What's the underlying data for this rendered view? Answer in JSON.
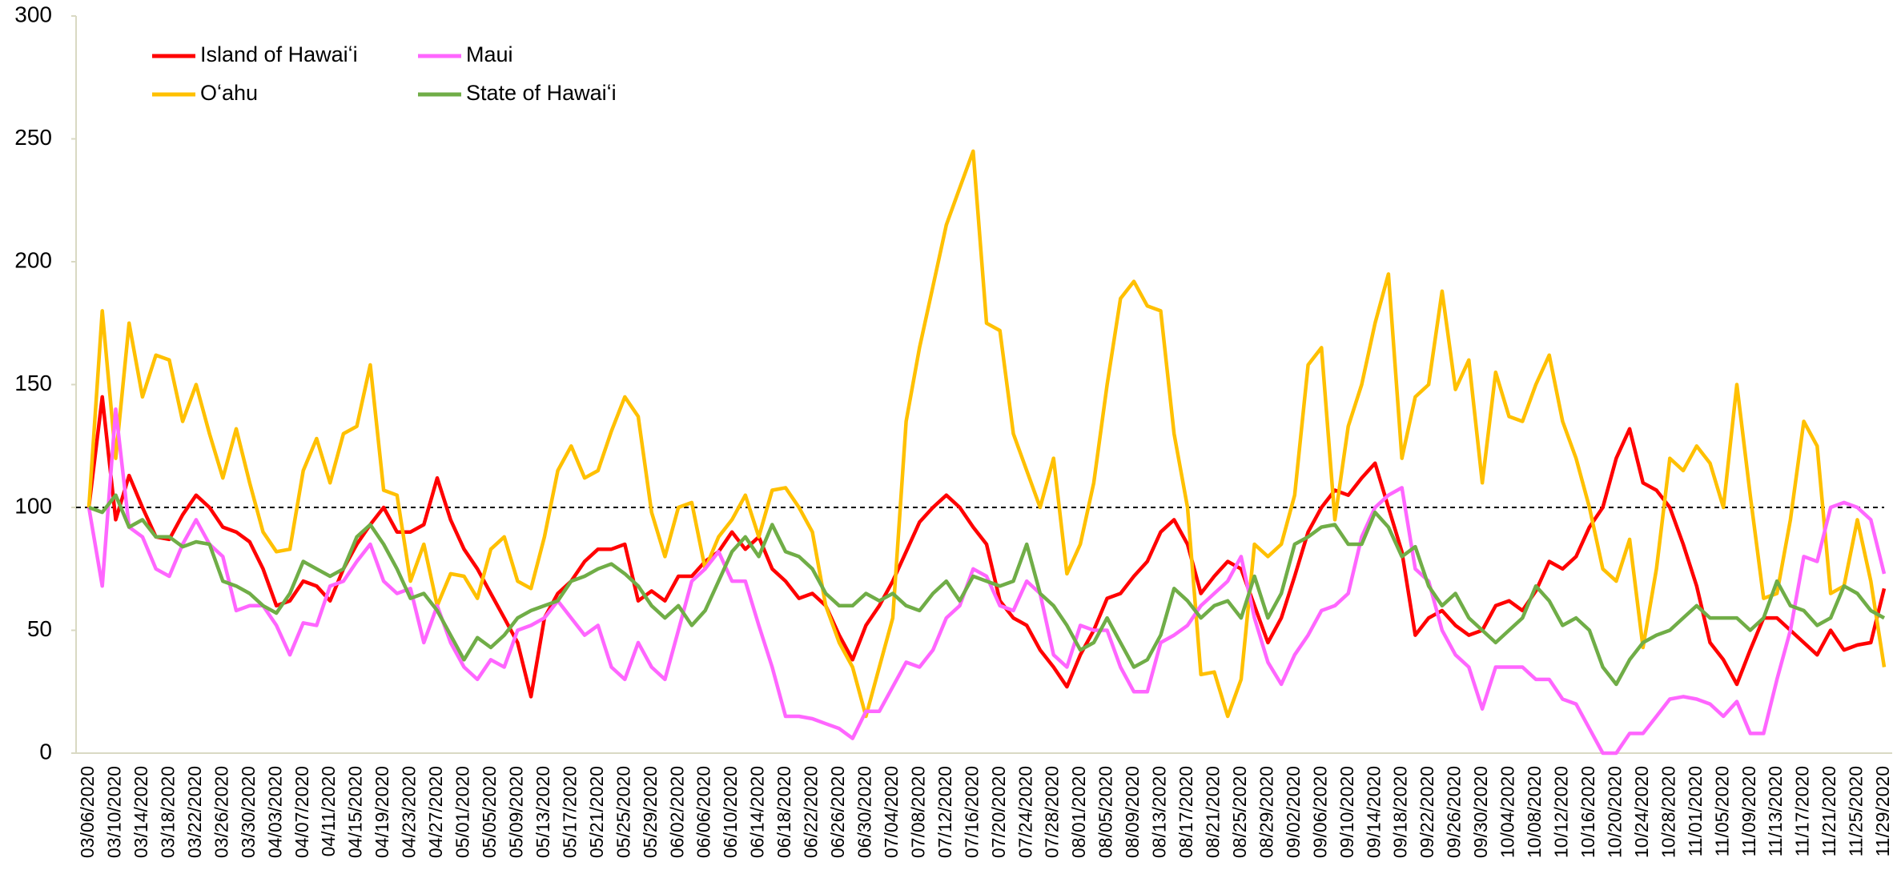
{
  "chart_data": {
    "type": "line",
    "categories": [
      "03/06/2020",
      null,
      "03/10/2020",
      null,
      "03/14/2020",
      null,
      "03/18/2020",
      null,
      "03/22/2020",
      null,
      "03/26/2020",
      null,
      "03/30/2020",
      null,
      "04/03/2020",
      null,
      "04/07/2020",
      null,
      "04/11/2020",
      null,
      "04/15/2020",
      null,
      "04/19/2020",
      null,
      "04/23/2020",
      null,
      "04/27/2020",
      null,
      "05/01/2020",
      null,
      "05/05/2020",
      null,
      "05/09/2020",
      null,
      "05/13/2020",
      null,
      "05/17/2020",
      null,
      "05/21/2020",
      null,
      "05/25/2020",
      null,
      "05/29/2020",
      null,
      "06/02/2020",
      null,
      "06/06/2020",
      null,
      "06/10/2020",
      null,
      "06/14/2020",
      null,
      "06/18/2020",
      null,
      "06/22/2020",
      null,
      "06/26/2020",
      null,
      "06/30/2020",
      null,
      "07/04/2020",
      null,
      "07/08/2020",
      null,
      "07/12/2020",
      null,
      "07/16/2020",
      null,
      "07/20/2020",
      null,
      "07/24/2020",
      null,
      "07/28/2020",
      null,
      "08/01/2020",
      null,
      "08/05/2020",
      null,
      "08/09/2020",
      null,
      "08/13/2020",
      null,
      "08/17/2020",
      null,
      "08/21/2020",
      null,
      "08/25/2020",
      null,
      "08/29/2020",
      null,
      "09/02/2020",
      null,
      "09/06/2020",
      null,
      "09/10/2020",
      null,
      "09/14/2020",
      null,
      "09/18/2020",
      null,
      "09/22/2020",
      null,
      "09/26/2020",
      null,
      "09/30/2020",
      null,
      "10/04/2020",
      null,
      "10/08/2020",
      null,
      "10/12/2020",
      null,
      "10/16/2020",
      null,
      "10/20/2020",
      null,
      "10/24/2020",
      null,
      "10/28/2020",
      null,
      "11/01/2020",
      null,
      "11/05/2020",
      null,
      "11/09/2020",
      null,
      "11/13/2020",
      null,
      "11/17/2020",
      null,
      "11/21/2020",
      null,
      "11/25/2020",
      null,
      "11/29/2020"
    ],
    "series": [
      {
        "name": "Island of Hawaiʻi",
        "color": "#ff0000",
        "values": [
          100,
          145,
          95,
          113,
          100,
          88,
          87,
          97,
          105,
          100,
          92,
          90,
          86,
          75,
          60,
          62,
          70,
          68,
          62,
          75,
          85,
          93,
          100,
          90,
          90,
          93,
          112,
          95,
          83,
          75,
          65,
          55,
          45,
          23,
          55,
          65,
          70,
          78,
          83,
          83,
          85,
          62,
          66,
          62,
          72,
          72,
          78,
          82,
          90,
          83,
          88,
          75,
          70,
          63,
          65,
          60,
          48,
          38,
          52,
          60,
          70,
          82,
          94,
          100,
          105,
          100,
          92,
          85,
          62,
          55,
          52,
          42,
          35,
          27,
          40,
          50,
          63,
          65,
          72,
          78,
          90,
          95,
          85,
          65,
          72,
          78,
          75,
          60,
          45,
          55,
          72,
          90,
          100,
          107,
          105,
          112,
          118,
          100,
          82,
          48,
          55,
          58,
          52,
          48,
          50,
          60,
          62,
          58,
          66,
          78,
          75,
          80,
          92,
          100,
          120,
          132,
          110,
          107,
          100,
          85,
          68,
          45,
          38,
          28,
          42,
          55,
          55,
          50,
          45,
          40,
          50,
          42,
          44,
          45,
          67
        ]
      },
      {
        "name": "Oʻahu",
        "color": "#ffc000",
        "values": [
          100,
          180,
          120,
          175,
          145,
          162,
          160,
          135,
          150,
          130,
          112,
          132,
          110,
          90,
          82,
          83,
          115,
          128,
          110,
          130,
          133,
          158,
          107,
          105,
          70,
          85,
          60,
          73,
          72,
          63,
          83,
          88,
          70,
          67,
          88,
          115,
          125,
          112,
          115,
          131,
          145,
          137,
          98,
          80,
          100,
          102,
          75,
          88,
          95,
          105,
          88,
          107,
          108,
          100,
          90,
          60,
          45,
          35,
          15,
          35,
          55,
          135,
          165,
          190,
          215,
          230,
          245,
          175,
          172,
          130,
          115,
          100,
          120,
          73,
          85,
          110,
          150,
          185,
          192,
          182,
          180,
          130,
          100,
          32,
          33,
          15,
          30,
          85,
          80,
          85,
          105,
          158,
          165,
          95,
          133,
          150,
          175,
          195,
          120,
          145,
          150,
          188,
          148,
          160,
          110,
          155,
          137,
          135,
          150,
          162,
          135,
          120,
          100,
          75,
          70,
          87,
          43,
          75,
          120,
          115,
          125,
          118,
          100,
          150,
          105,
          63,
          65,
          95,
          135,
          125,
          65,
          68,
          95,
          70,
          35
        ]
      },
      {
        "name": "Maui",
        "color": "#ff66ff",
        "values": [
          100,
          68,
          140,
          92,
          88,
          75,
          72,
          85,
          95,
          85,
          80,
          58,
          60,
          60,
          52,
          40,
          53,
          52,
          68,
          70,
          78,
          85,
          70,
          65,
          67,
          45,
          60,
          45,
          35,
          30,
          38,
          35,
          50,
          52,
          55,
          62,
          55,
          48,
          52,
          35,
          30,
          45,
          35,
          30,
          50,
          70,
          75,
          82,
          70,
          70,
          52,
          35,
          15,
          15,
          14,
          12,
          10,
          6,
          17,
          17,
          27,
          37,
          35,
          42,
          55,
          60,
          75,
          72,
          60,
          58,
          70,
          65,
          40,
          35,
          52,
          50,
          50,
          35,
          25,
          25,
          45,
          48,
          52,
          60,
          65,
          70,
          80,
          55,
          37,
          28,
          40,
          48,
          58,
          60,
          65,
          88,
          100,
          105,
          108,
          75,
          70,
          50,
          40,
          35,
          18,
          35,
          35,
          35,
          30,
          30,
          22,
          20,
          10,
          0,
          0,
          8,
          8,
          15,
          22,
          23,
          22,
          20,
          15,
          21,
          8,
          8,
          30,
          50,
          80,
          78,
          100,
          102,
          100,
          95,
          73
        ]
      },
      {
        "name": "State of Hawaiʻi",
        "color": "#70ad47",
        "values": [
          100,
          98,
          105,
          92,
          95,
          88,
          88,
          84,
          86,
          85,
          70,
          68,
          65,
          60,
          57,
          65,
          78,
          75,
          72,
          75,
          88,
          93,
          85,
          75,
          63,
          65,
          58,
          48,
          38,
          47,
          43,
          48,
          55,
          58,
          60,
          62,
          70,
          72,
          75,
          77,
          73,
          68,
          60,
          55,
          60,
          52,
          58,
          70,
          82,
          88,
          80,
          93,
          82,
          80,
          75,
          65,
          60,
          60,
          65,
          62,
          65,
          60,
          58,
          65,
          70,
          62,
          72,
          70,
          68,
          70,
          85,
          65,
          60,
          52,
          42,
          45,
          55,
          45,
          35,
          38,
          48,
          67,
          62,
          55,
          60,
          62,
          55,
          72,
          55,
          65,
          85,
          88,
          92,
          93,
          85,
          85,
          98,
          92,
          80,
          84,
          68,
          60,
          65,
          55,
          50,
          45,
          50,
          55,
          68,
          62,
          52,
          55,
          50,
          35,
          28,
          38,
          45,
          48,
          50,
          55,
          60,
          55,
          55,
          55,
          50,
          55,
          70,
          60,
          58,
          52,
          55,
          68,
          65,
          58,
          55
        ]
      }
    ],
    "reference_line": 100,
    "ylim": [
      0,
      300
    ],
    "yticks": [
      0,
      50,
      100,
      150,
      200,
      250,
      300
    ],
    "grid": false,
    "legend": "top-left"
  }
}
